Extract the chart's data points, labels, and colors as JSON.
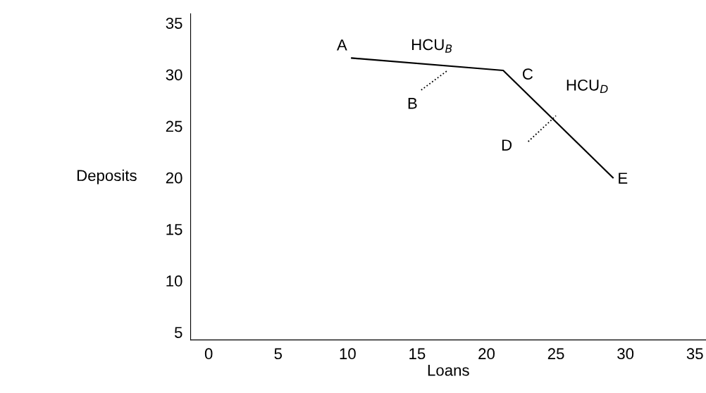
{
  "chart_data": {
    "type": "line",
    "xlabel": "Loans",
    "ylabel": "Deposits",
    "xlim": [
      -1.3,
      35.8
    ],
    "ylim": [
      4.25,
      35.9
    ],
    "xticks": [
      0,
      5,
      10,
      15,
      20,
      25,
      30,
      35
    ],
    "yticks": [
      5,
      10,
      15,
      20,
      25,
      30,
      35
    ],
    "grid": false,
    "legend": false,
    "series": [
      {
        "color": "#000000",
        "x": [
          10.3,
          21.2,
          29.1
        ],
        "values": [
          31.6,
          30.4,
          20.0
        ],
        "line_style": "solid"
      },
      {
        "color": "#000000",
        "x": [
          15.3,
          17.2
        ],
        "values": [
          28.5,
          30.4
        ],
        "line_style": "dotted"
      },
      {
        "color": "#000000",
        "x": [
          23.0,
          25.0
        ],
        "values": [
          23.5,
          26.0
        ],
        "line_style": "dotted"
      }
    ],
    "annotations": [
      {
        "text": "A",
        "x": 10.3,
        "y": 31.6
      },
      {
        "text": "HCU$_{B}$",
        "x": 17.2,
        "y": 30.4
      },
      {
        "text": "B",
        "x": 15.3,
        "y": 28.5
      },
      {
        "text": "C",
        "x": 21.2,
        "y": 30.4
      },
      {
        "text": "HCU$_{D}$",
        "x": 25.0,
        "y": 26.0
      },
      {
        "text": "D",
        "x": 23.0,
        "y": 23.5
      },
      {
        "text": "E",
        "x": 29.1,
        "y": 20.0
      }
    ]
  }
}
